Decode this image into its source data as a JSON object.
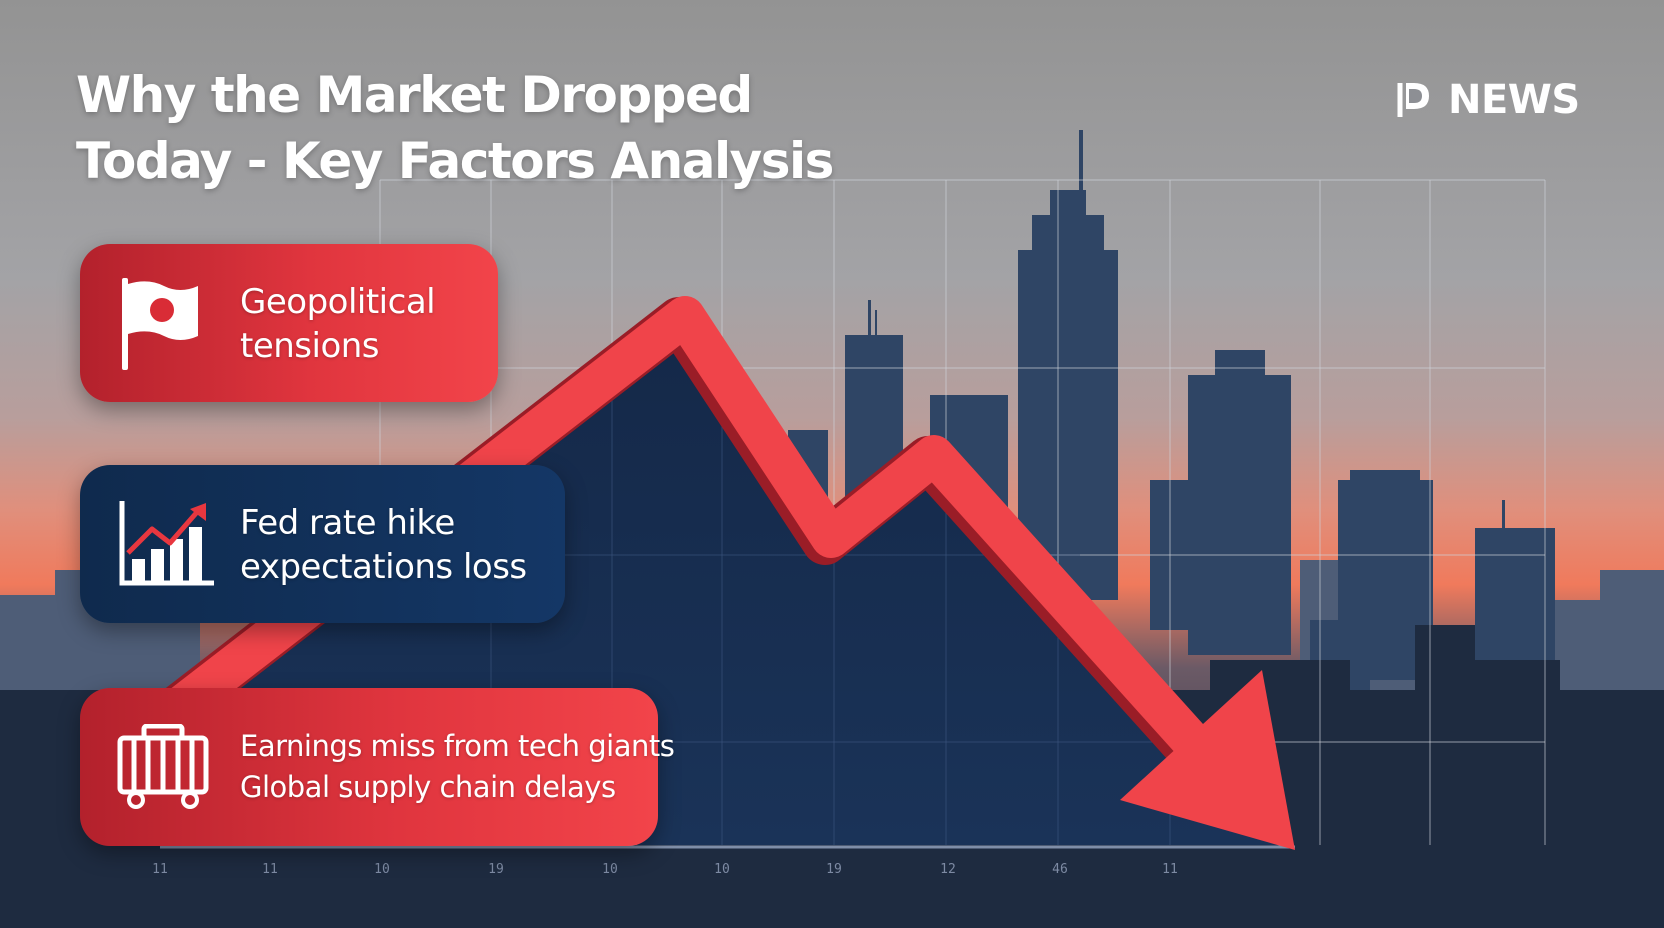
{
  "title": {
    "line1": "Why the Market Dropped",
    "line2": "Today - Key Factors Analysis"
  },
  "brand": {
    "logo_icon": "p-logo-icon",
    "name": "NEWS"
  },
  "factors": [
    {
      "icon": "flag-icon",
      "color": "#e3373f",
      "lines": [
        "Geopolitical",
        "tensions"
      ]
    },
    {
      "icon": "rising-bar-chart-icon",
      "color": "#12325d",
      "lines": [
        "Fed rate hike",
        "expectations loss"
      ]
    },
    {
      "icon": "cargo-container-icon",
      "color": "#e3373f",
      "lines": [
        "Earnings miss from tech giants",
        "Global supply chain delays"
      ]
    }
  ],
  "axis_ticks": [
    "11",
    "11",
    "10",
    "19",
    "10",
    "10",
    "19",
    "12",
    "46",
    "11"
  ],
  "trend": {
    "direction": "down",
    "arrow_color": "#f0444a"
  }
}
